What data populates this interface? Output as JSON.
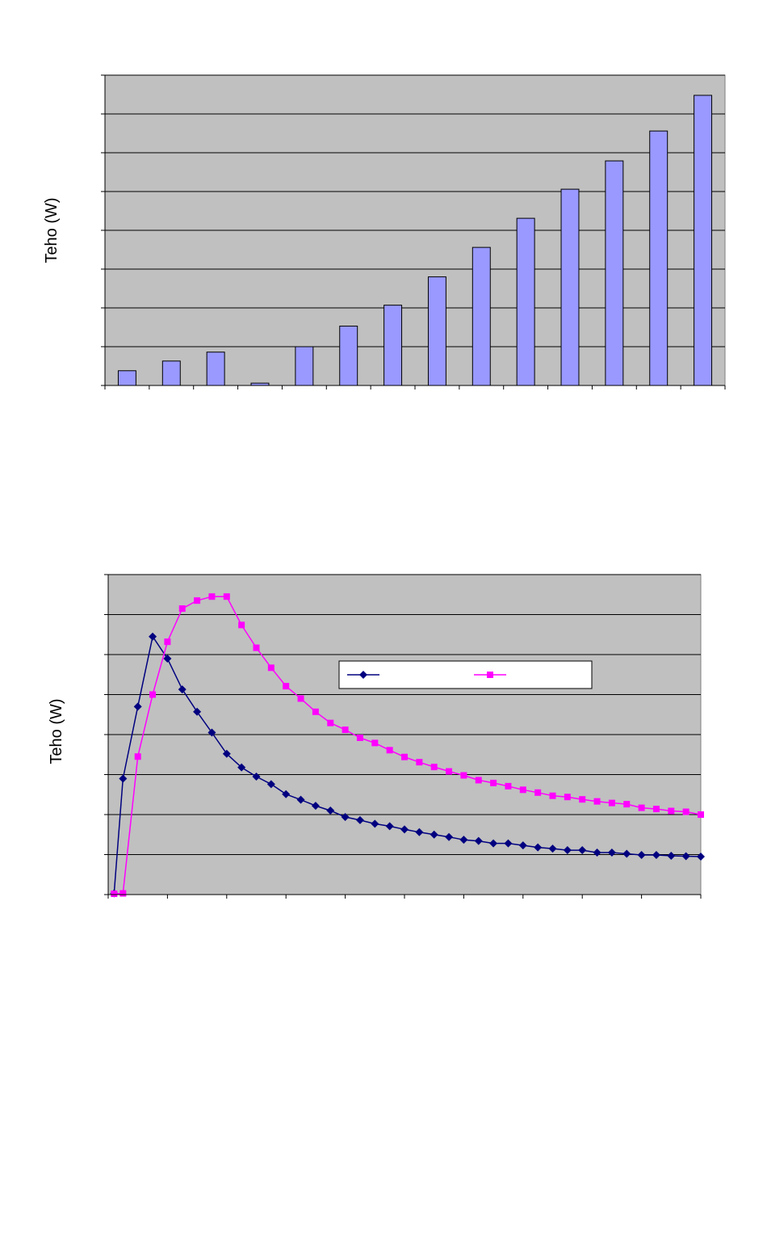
{
  "charts": [
    {
      "ylabel": "Teho (W)"
    },
    {
      "ylabel": "Teho (W)",
      "legend_entries": [
        "",
        ""
      ]
    }
  ],
  "colors": {
    "plot_background": "#c0c0c0",
    "bar_fill": "#9999ff",
    "series_a": "#000080",
    "series_b": "#ff00ff",
    "gridline": "#000000"
  },
  "chart_data": [
    {
      "type": "bar",
      "ylabel": "Teho (W)",
      "ylim": [
        0,
        8
      ],
      "grid": true,
      "categories": [
        "",
        "",
        "",
        "",
        "",
        "",
        "",
        "",
        "",
        "",
        "",
        "",
        "",
        ""
      ],
      "values": [
        0.38,
        0.63,
        0.86,
        0.06,
        1.0,
        1.53,
        2.07,
        2.8,
        3.56,
        4.31,
        5.06,
        5.79,
        6.56,
        7.48
      ]
    },
    {
      "type": "line",
      "ylabel": "Teho (W)",
      "xlim": [
        0,
        10
      ],
      "ylim": [
        0,
        8
      ],
      "grid": true,
      "legend": "top-right",
      "series": [
        {
          "marker": "diamond",
          "x": [
            0.1,
            0.25,
            0.5,
            0.75,
            1.0,
            1.25,
            1.5,
            1.75,
            2.0,
            2.25,
            2.5,
            2.75,
            3.0,
            3.25,
            3.5,
            3.75,
            4.0,
            4.25,
            4.5,
            4.75,
            5.0,
            5.25,
            5.5,
            5.75,
            6.0,
            6.25,
            6.5,
            6.75,
            7.0,
            7.25,
            7.5,
            7.75,
            8.0,
            8.25,
            8.5,
            8.75,
            9.0,
            9.25,
            9.5,
            9.75,
            10.0
          ],
          "y": [
            0.03,
            2.9,
            4.7,
            6.45,
            5.9,
            5.13,
            4.57,
            4.05,
            3.52,
            3.18,
            2.95,
            2.76,
            2.51,
            2.37,
            2.22,
            2.1,
            1.94,
            1.86,
            1.77,
            1.71,
            1.63,
            1.56,
            1.5,
            1.44,
            1.37,
            1.34,
            1.28,
            1.28,
            1.23,
            1.18,
            1.15,
            1.11,
            1.11,
            1.05,
            1.05,
            1.02,
            0.99,
            0.99,
            0.97,
            0.96,
            0.95
          ]
        },
        {
          "marker": "square",
          "x": [
            0.1,
            0.25,
            0.5,
            0.75,
            1.0,
            1.25,
            1.5,
            1.75,
            2.0,
            2.25,
            2.5,
            2.75,
            3.0,
            3.25,
            3.5,
            3.75,
            4.0,
            4.25,
            4.5,
            4.75,
            5.0,
            5.25,
            5.5,
            5.75,
            6.0,
            6.25,
            6.5,
            6.75,
            7.0,
            7.25,
            7.5,
            7.75,
            8.0,
            8.25,
            8.5,
            8.75,
            9.0,
            9.25,
            9.5,
            9.75,
            10.0
          ],
          "y": [
            0.02,
            0.03,
            3.45,
            5.0,
            6.32,
            7.15,
            7.35,
            7.45,
            7.45,
            6.74,
            6.17,
            5.67,
            5.21,
            4.9,
            4.57,
            4.29,
            4.12,
            3.92,
            3.79,
            3.61,
            3.44,
            3.31,
            3.19,
            3.08,
            2.98,
            2.86,
            2.79,
            2.71,
            2.62,
            2.55,
            2.47,
            2.44,
            2.38,
            2.33,
            2.29,
            2.26,
            2.17,
            2.14,
            2.09,
            2.07,
            2.0
          ]
        }
      ]
    }
  ]
}
